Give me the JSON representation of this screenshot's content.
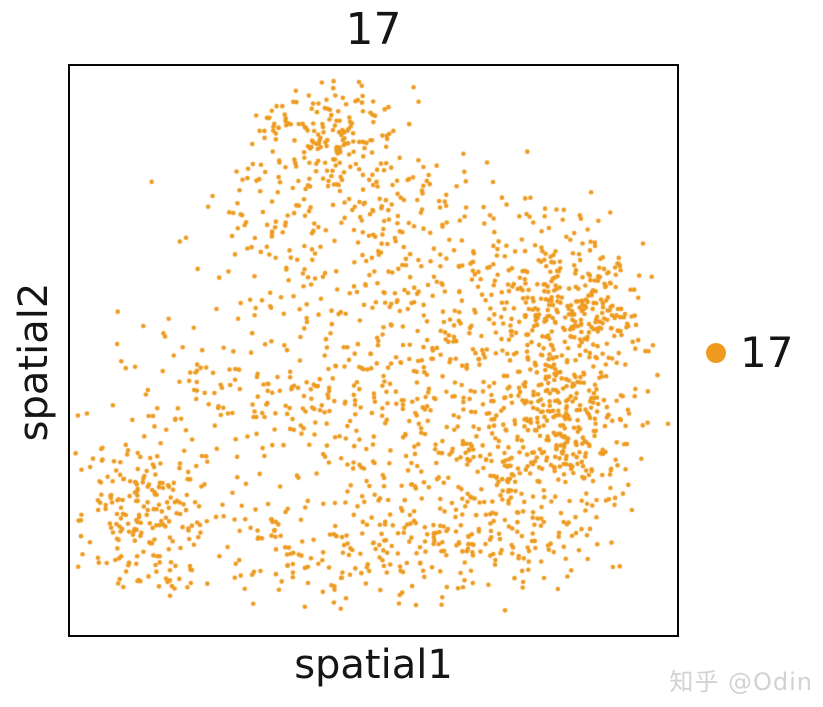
{
  "page": {
    "background": "#ffffff"
  },
  "watermark": {
    "text": "知乎 @Odin",
    "color": "#d2d2d2"
  },
  "chart_data": {
    "type": "scatter",
    "title": "17",
    "xlabel": "spatial1",
    "ylabel": "spatial2",
    "x_ticks": [],
    "y_ticks": [],
    "grid": false,
    "frame": true,
    "frame_color": "#050505",
    "legend": {
      "position": "right-center",
      "entries": [
        {
          "label": "17",
          "color": "#ee9b20",
          "marker": "circle"
        }
      ]
    },
    "series": [
      {
        "name": "17",
        "color": "#ee9b20",
        "marker_radius_px": 2.3,
        "n_points": 2150,
        "coords_note": "dense unlabeled point cloud; approximated by gaussian blobs in axes-fraction coords (x rightward, y downward)",
        "generator": {
          "seed": 17,
          "clip_x": [
            0.008,
            0.992
          ],
          "clip_y": [
            0.008,
            0.958
          ],
          "blobs": [
            {
              "n": 150,
              "cx": 0.425,
              "cy": 0.115,
              "sx": 0.062,
              "sy": 0.058
            },
            {
              "n": 110,
              "cx": 0.455,
              "cy": 0.24,
              "sx": 0.085,
              "sy": 0.06
            },
            {
              "n": 55,
              "cx": 0.33,
              "cy": 0.295,
              "sx": 0.085,
              "sy": 0.075
            },
            {
              "n": 110,
              "cx": 0.59,
              "cy": 0.33,
              "sx": 0.1,
              "sy": 0.08
            },
            {
              "n": 230,
              "cx": 0.79,
              "cy": 0.4,
              "sx": 0.07,
              "sy": 0.068
            },
            {
              "n": 320,
              "cx": 0.805,
              "cy": 0.6,
              "sx": 0.062,
              "sy": 0.08
            },
            {
              "n": 240,
              "cx": 0.59,
              "cy": 0.57,
              "sx": 0.12,
              "sy": 0.1
            },
            {
              "n": 120,
              "cx": 0.36,
              "cy": 0.62,
              "sx": 0.13,
              "sy": 0.1
            },
            {
              "n": 200,
              "cx": 0.12,
              "cy": 0.78,
              "sx": 0.055,
              "sy": 0.075
            },
            {
              "n": 70,
              "cx": 0.22,
              "cy": 0.59,
              "sx": 0.09,
              "sy": 0.09
            },
            {
              "n": 260,
              "cx": 0.51,
              "cy": 0.84,
              "sx": 0.17,
              "sy": 0.062
            },
            {
              "n": 170,
              "cx": 0.71,
              "cy": 0.75,
              "sx": 0.09,
              "sy": 0.08
            },
            {
              "n": 45,
              "cx": 0.46,
              "cy": 0.41,
              "sx": 0.12,
              "sy": 0.09
            },
            {
              "n": 10,
              "cx": 0.93,
              "cy": 0.52,
              "sx": 0.03,
              "sy": 0.065
            },
            {
              "n": 60,
              "cx": 0.88,
              "cy": 0.43,
              "sx": 0.035,
              "sy": 0.05
            }
          ]
        }
      }
    ]
  }
}
